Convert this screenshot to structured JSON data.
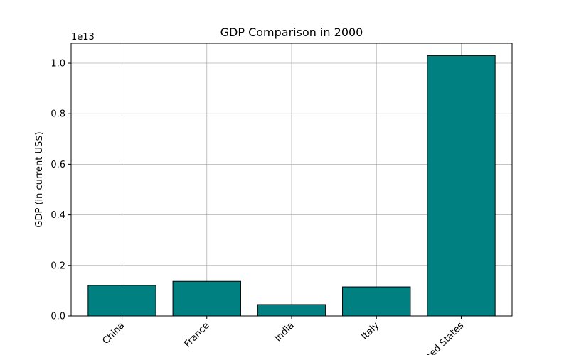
{
  "chart_data": {
    "type": "bar",
    "title": "GDP Comparison in 2000",
    "y_label": "GDP (in current US$)",
    "y_offset_label": "1e13",
    "categories": [
      "China",
      "France",
      "India",
      "Italy",
      "United States"
    ],
    "values": [
      1210000000000,
      1370000000000,
      450000000000,
      1150000000000,
      10300000000000
    ],
    "color": "#008080",
    "edgecolor": "#000000",
    "ylim": [
      0,
      10787000000000
    ],
    "yticks": [
      {
        "value": 0,
        "label": "0.0"
      },
      {
        "value": 2000000000000,
        "label": "0.2"
      },
      {
        "value": 4000000000000,
        "label": "0.4"
      },
      {
        "value": 6000000000000,
        "label": "0.6"
      },
      {
        "value": 8000000000000,
        "label": "0.8"
      },
      {
        "value": 10000000000000,
        "label": "1.0"
      }
    ],
    "grid": true
  }
}
